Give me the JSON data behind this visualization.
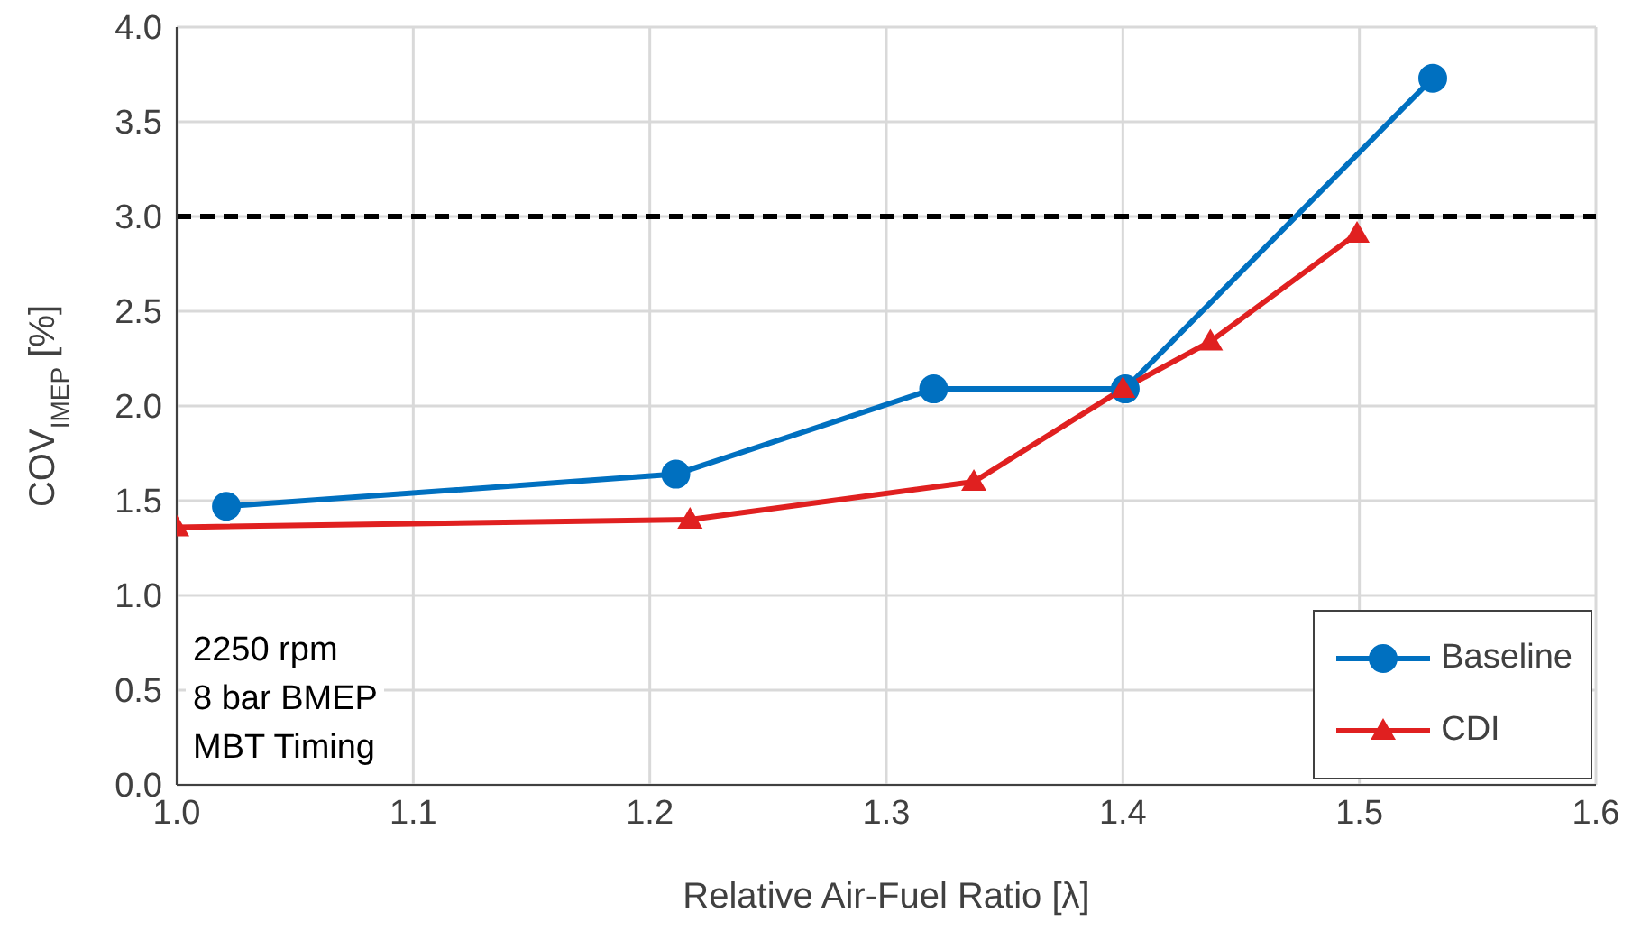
{
  "chart_data": {
    "type": "line",
    "xlabel": "Relative Air-Fuel Ratio [λ]",
    "ylabel": "COV$_{IMEP}$ [%]",
    "xlim": [
      1.0,
      1.6
    ],
    "xticks": [
      {
        "value": 1.0,
        "label": "1.0"
      },
      1.1,
      1.2,
      1.3,
      1.4,
      1.5,
      1.6
    ],
    "ylim": [
      0,
      4
    ],
    "yticks": [
      {
        "value": 0,
        "label": "0.0"
      },
      0.5,
      {
        "value": 1,
        "label": "1.0"
      },
      1.5,
      {
        "value": 2,
        "label": "2.0"
      },
      2.5,
      {
        "value": 3,
        "label": "3.0"
      },
      3.5,
      {
        "value": 4,
        "label": "4.0"
      }
    ],
    "grid": true,
    "legend": "bottom right",
    "series": [
      {
        "name": "Baseline",
        "color": "#0070c0",
        "marker": "circle",
        "x": [
          1.021,
          1.211,
          1.32,
          1.401,
          1.531
        ],
        "values": [
          1.47,
          1.64,
          2.09,
          2.09,
          3.73
        ]
      },
      {
        "name": "CDI",
        "color": "#e02020",
        "marker": "triangle",
        "x": [
          1.0,
          1.217,
          1.337,
          1.4,
          1.437,
          1.499
        ],
        "values": [
          1.36,
          1.4,
          1.6,
          2.09,
          2.34,
          2.91
        ]
      }
    ],
    "ref_lines": [
      {
        "axis": "y",
        "value": 3,
        "color": "#000000",
        "line_style": "dashed"
      }
    ],
    "annotations": [
      "2250 rpm",
      "8 bar BMEP",
      "MBT Timing"
    ]
  }
}
